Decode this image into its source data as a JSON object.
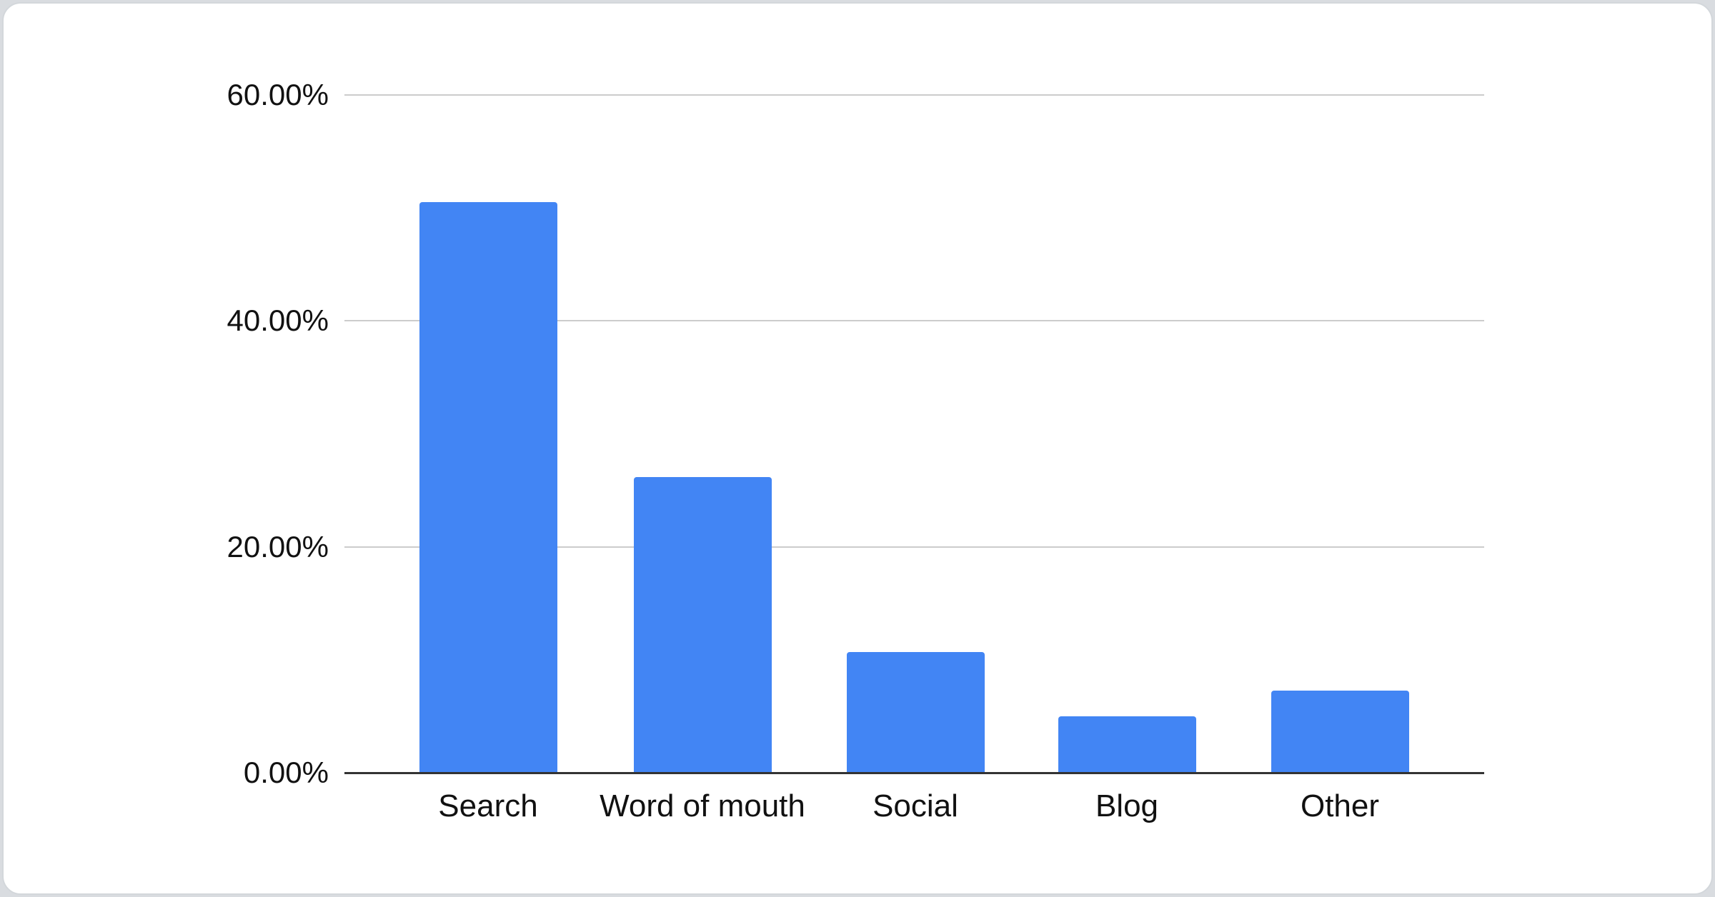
{
  "colors": {
    "page_bg": "#d9dce0",
    "card_bg": "#ffffff",
    "card_border": "#d3d7db",
    "bar": "#4285f4",
    "gridline": "#cccccc",
    "axis_line": "#333333",
    "label_text": "#111111"
  },
  "chart_data": {
    "type": "bar",
    "categories": [
      "Search",
      "Word of mouth",
      "Social",
      "Blog",
      "Other"
    ],
    "values": [
      50.5,
      26.2,
      10.7,
      5.0,
      7.3
    ],
    "value_unit": "percent",
    "series_color": "#4285f4",
    "xlabel": "",
    "ylabel": "",
    "ylim": [
      0,
      60
    ],
    "grid": "horizontal",
    "legend": "none",
    "yticks": [
      {
        "value": 60,
        "label": "60.00%"
      },
      {
        "value": 40,
        "label": "40.00%"
      },
      {
        "value": 20,
        "label": "20.00%"
      },
      {
        "value": 0,
        "label": "0.00%"
      }
    ]
  }
}
